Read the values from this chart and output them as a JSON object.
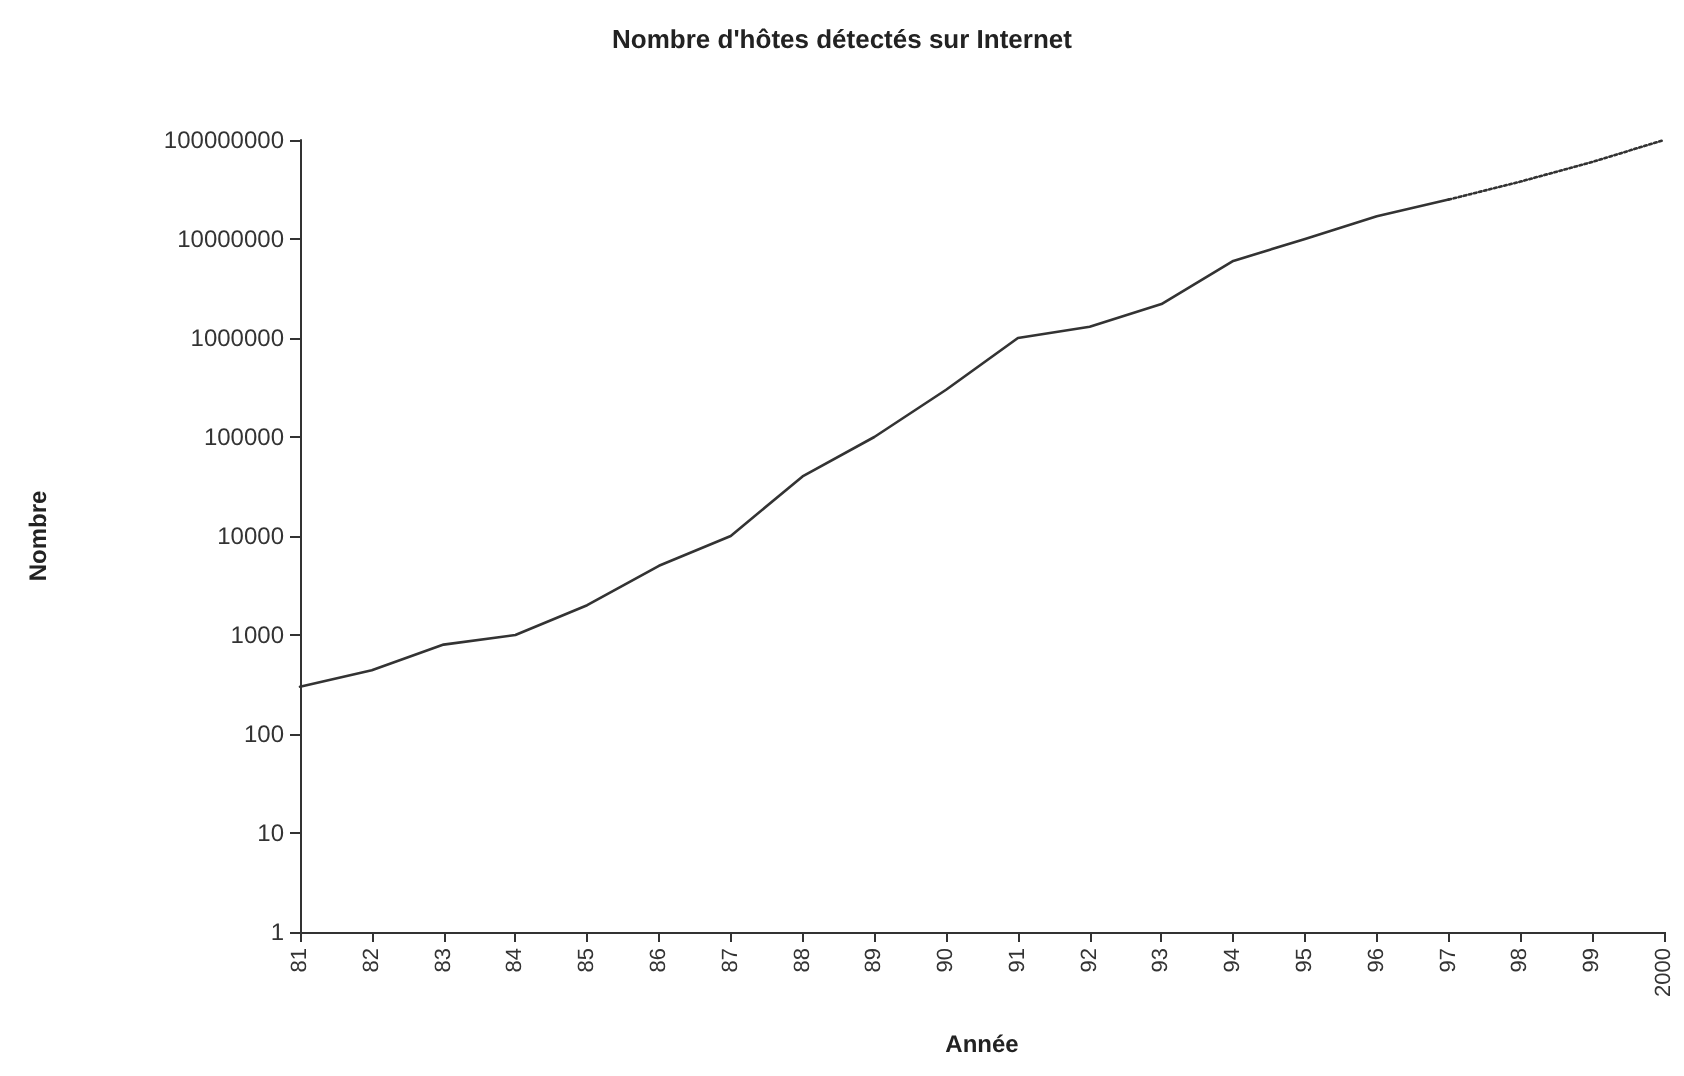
{
  "chart_data": {
    "type": "line",
    "title": "Nombre d'hôtes détectés sur Internet",
    "xlabel": "Année",
    "ylabel": "Nombre",
    "categories": [
      "81",
      "82",
      "83",
      "84",
      "85",
      "86",
      "87",
      "88",
      "89",
      "90",
      "91",
      "92",
      "93",
      "94",
      "95",
      "96",
      "97",
      "98",
      "99",
      "2000"
    ],
    "series": [
      {
        "color": "#333333",
        "line_style": "solid",
        "values": [
          300,
          440,
          800,
          1000,
          2000,
          5000,
          10000,
          40000,
          100000,
          300000,
          1000000,
          1300000,
          2200000,
          6000000,
          10000000,
          17000000,
          25000000,
          null,
          null,
          null
        ]
      },
      {
        "color": "#333333",
        "line_style": "dotted",
        "values": [
          null,
          null,
          null,
          null,
          null,
          null,
          null,
          null,
          null,
          null,
          null,
          null,
          null,
          null,
          null,
          null,
          25000000,
          38000000,
          60000000,
          100000000
        ]
      }
    ],
    "ylim": [
      1,
      100000000
    ],
    "yticks": [
      1,
      10,
      100,
      1000,
      10000,
      100000,
      1000000,
      10000000,
      100000000
    ],
    "log": "y",
    "marker": "none"
  }
}
